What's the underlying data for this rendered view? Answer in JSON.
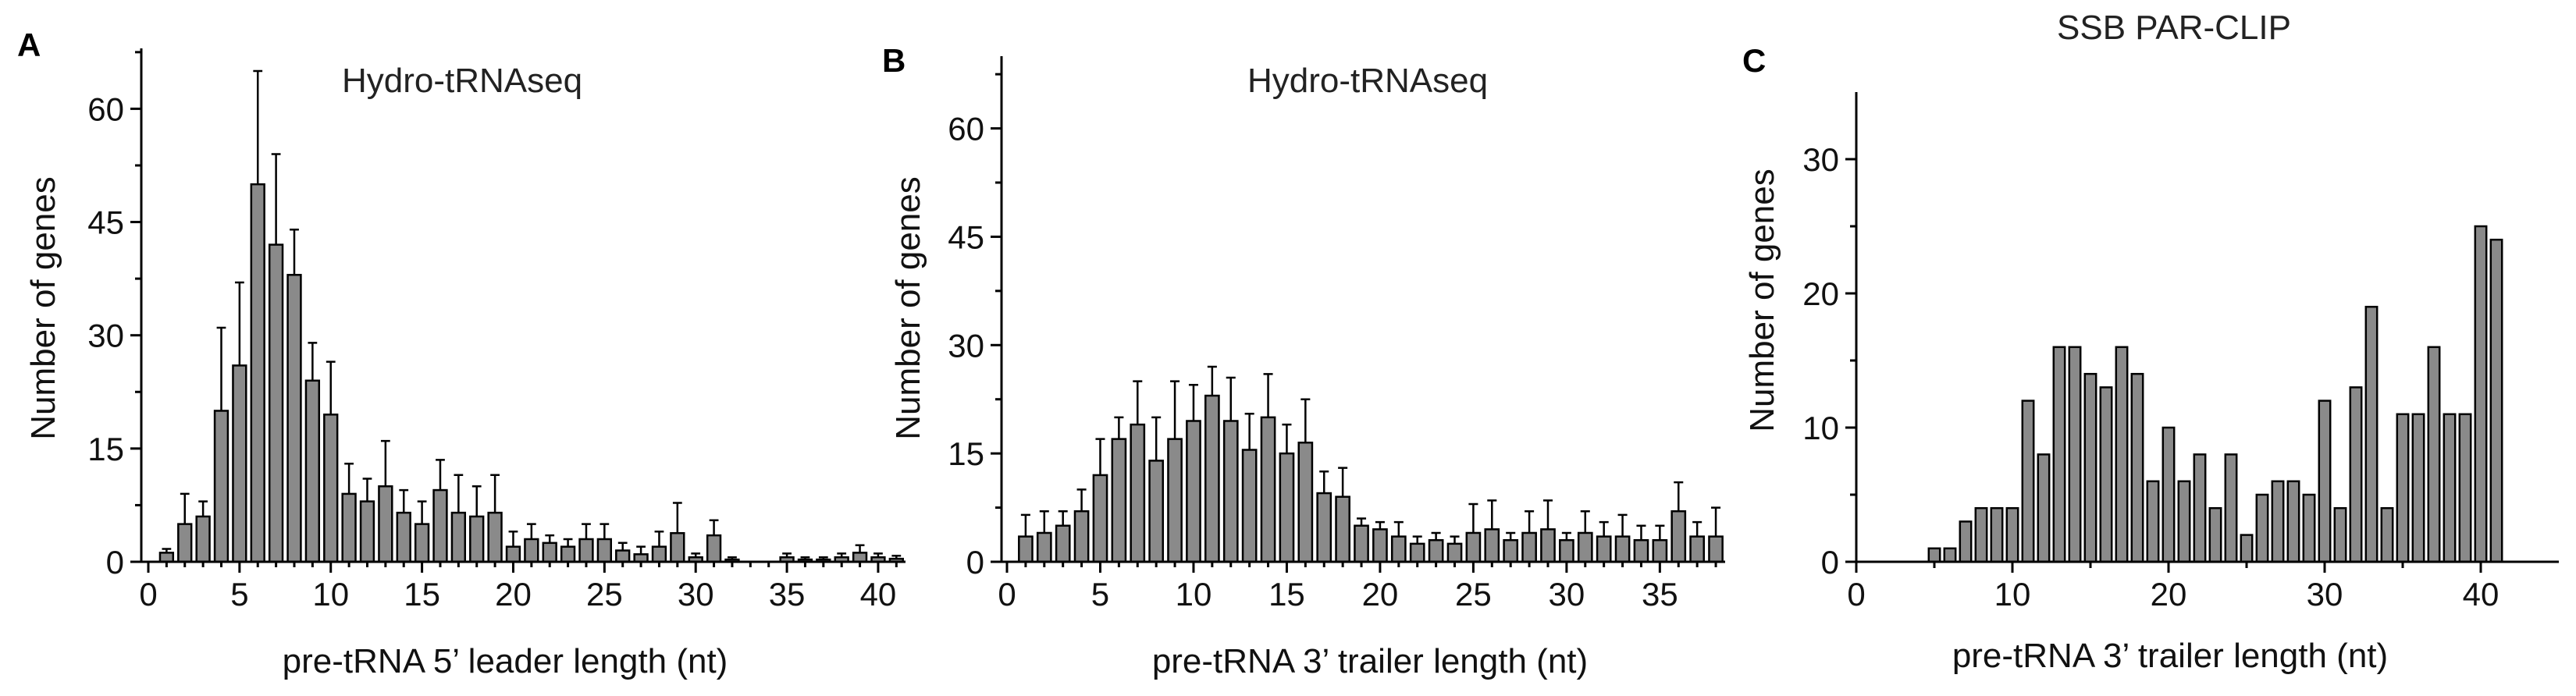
{
  "chart_data": [
    {
      "type": "bar",
      "panel": "A",
      "title": "Hydro-tRNAseq",
      "xlabel": "pre-tRNA 5’ leader length (nt)",
      "ylabel": "Number of genes",
      "xlim": [
        0,
        41.5
      ],
      "ylim": [
        0,
        68
      ],
      "xticks": [
        0,
        5,
        10,
        15,
        20,
        25,
        30,
        35,
        40
      ],
      "yticks": [
        0,
        15,
        30,
        45,
        60
      ],
      "x": [
        1,
        2,
        3,
        4,
        5,
        6,
        7,
        8,
        9,
        10,
        11,
        12,
        13,
        14,
        15,
        16,
        17,
        18,
        19,
        20,
        21,
        22,
        23,
        24,
        25,
        26,
        27,
        28,
        29,
        30,
        31,
        32,
        33,
        34,
        35,
        36,
        37,
        38,
        39,
        40,
        41
      ],
      "values": [
        1.2,
        5,
        6,
        20,
        26,
        50,
        42,
        38,
        24,
        19.5,
        9,
        8,
        10,
        6.5,
        5,
        9.5,
        6.5,
        6,
        6.5,
        2,
        3,
        2.5,
        2,
        3,
        3,
        1.5,
        1,
        2,
        3.8,
        0.6,
        3.5,
        0.3,
        0,
        0,
        0.6,
        0.3,
        0.3,
        0.6,
        1.2,
        0.6,
        0.4
      ],
      "error": [
        0.5,
        4,
        2,
        11,
        11,
        15,
        12,
        6,
        5,
        7,
        4,
        3,
        6,
        3,
        3,
        4,
        5,
        4,
        5,
        2,
        2,
        1,
        1,
        2,
        2,
        1,
        1,
        2,
        4,
        0.5,
        2,
        0.3,
        0,
        0,
        0.5,
        0.3,
        0.3,
        0.5,
        1,
        0.5,
        0.4
      ],
      "grid": false
    },
    {
      "type": "bar",
      "panel": "B",
      "title": "Hydro-tRNAseq",
      "xlabel": "pre-tRNA 3’ trailer length (nt)",
      "ylabel": "Number of genes",
      "xlim": [
        0,
        38.5
      ],
      "ylim": [
        0,
        70
      ],
      "xticks": [
        0,
        5,
        10,
        15,
        20,
        25,
        30,
        35
      ],
      "yticks": [
        0,
        15,
        30,
        45,
        60
      ],
      "x": [
        1,
        2,
        3,
        4,
        5,
        6,
        7,
        8,
        9,
        10,
        11,
        12,
        13,
        14,
        15,
        16,
        17,
        18,
        19,
        20,
        21,
        22,
        23,
        24,
        25,
        26,
        27,
        28,
        29,
        30,
        31,
        32,
        33,
        34,
        35,
        36,
        37,
        38
      ],
      "values": [
        3.5,
        4,
        5,
        7,
        12,
        17,
        19,
        14,
        17,
        19.5,
        23,
        19.5,
        15.5,
        20,
        15,
        16.5,
        9.5,
        9,
        5,
        4.5,
        3.5,
        2.5,
        3,
        2.5,
        4,
        4.5,
        3,
        4,
        4.5,
        3,
        4,
        3.5,
        3.5,
        3,
        3,
        7,
        3.5,
        3.5
      ],
      "error": [
        3,
        3,
        2,
        3,
        5,
        3,
        6,
        6,
        8,
        5,
        4,
        6,
        5,
        6,
        4,
        6,
        3,
        4,
        1,
        1,
        2,
        1,
        1,
        1,
        4,
        4,
        1,
        3,
        4,
        1,
        3,
        2,
        3,
        2,
        2,
        4,
        2,
        4
      ],
      "grid": false
    },
    {
      "type": "bar",
      "panel": "C",
      "title": "SSB PAR-CLIP",
      "xlabel": "pre-tRNA 3’ trailer length (nt)",
      "ylabel": "Number of genes",
      "xlim": [
        0,
        45
      ],
      "ylim": [
        0,
        35
      ],
      "xticks": [
        0,
        10,
        20,
        30,
        40
      ],
      "yticks": [
        0,
        10,
        20,
        30
      ],
      "x": [
        5,
        6,
        7,
        8,
        9,
        10,
        11,
        12,
        13,
        14,
        15,
        16,
        17,
        18,
        19,
        20,
        21,
        22,
        23,
        24,
        25,
        26,
        27,
        28,
        29,
        30,
        31,
        32,
        33,
        34,
        35,
        36,
        37,
        38,
        39,
        40,
        41
      ],
      "values": [
        1,
        1,
        3,
        4,
        4,
        4,
        12,
        8,
        16,
        16,
        14,
        13,
        16,
        14,
        6,
        10,
        6,
        8,
        4,
        8,
        2,
        5,
        6,
        6,
        5,
        12,
        4,
        13,
        19,
        4,
        11,
        11,
        16,
        11,
        11,
        25,
        24
      ],
      "grid": false
    }
  ]
}
